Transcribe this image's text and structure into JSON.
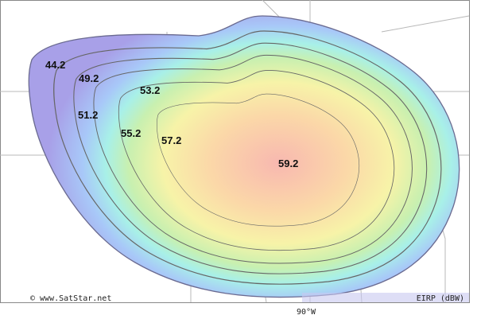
{
  "map": {
    "contours": [
      44.2,
      49.2,
      51.2,
      53.2,
      55.2,
      57.2,
      59.2
    ],
    "copyright": "© www.SatStar.net",
    "legend": "EIRP (dBW)",
    "longitude_label": "90°W"
  }
}
